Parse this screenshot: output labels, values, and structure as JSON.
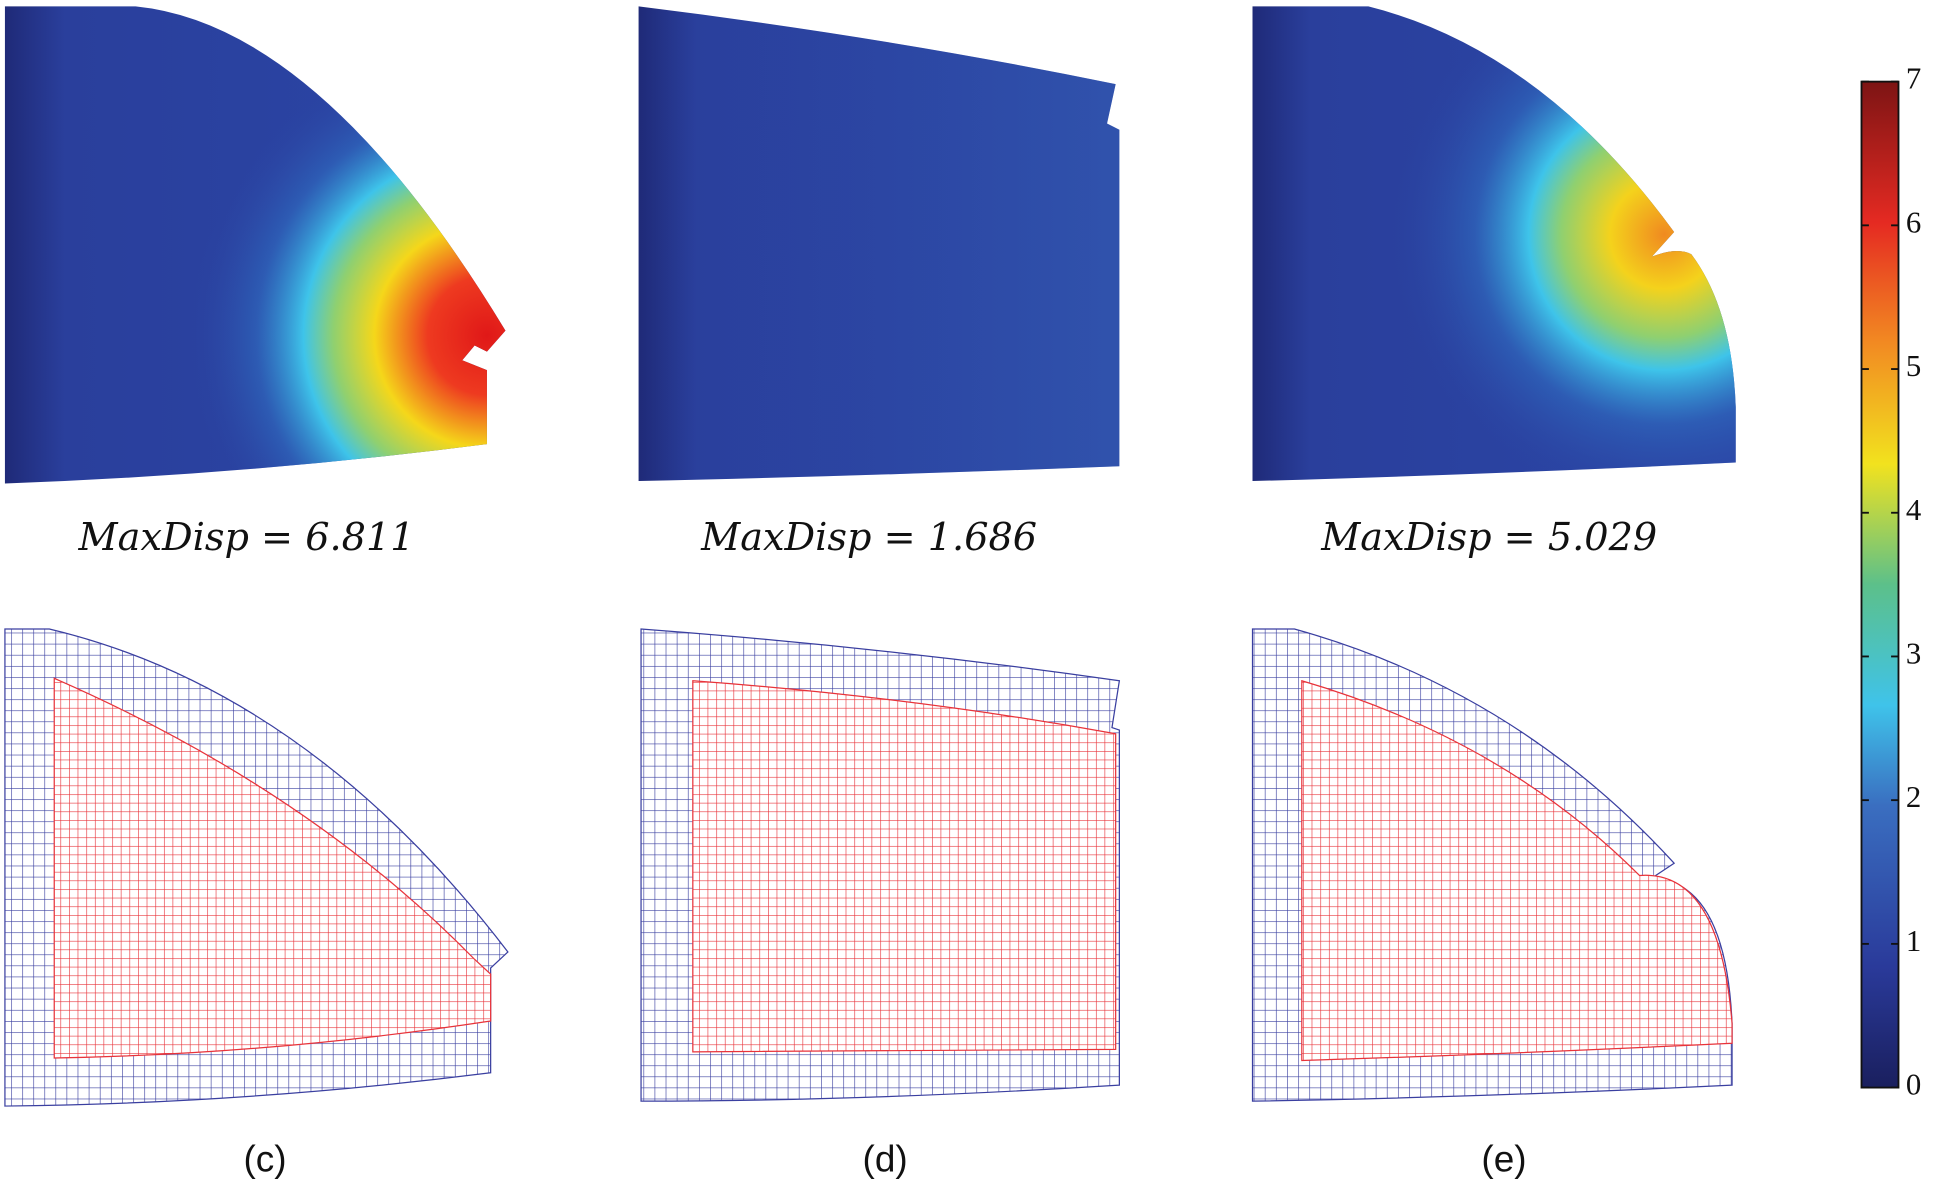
{
  "panels": [
    {
      "label": "MaxDisp = 6.811",
      "caption": "(c)"
    },
    {
      "label": "MaxDisp = 1.686",
      "caption": "(d)"
    },
    {
      "label": "MaxDisp = 5.029",
      "caption": "(e)"
    }
  ],
  "colorbar": {
    "lim": [
      0,
      7
    ],
    "ticks": [
      0,
      1,
      2,
      3,
      4,
      5,
      6,
      7
    ]
  }
}
